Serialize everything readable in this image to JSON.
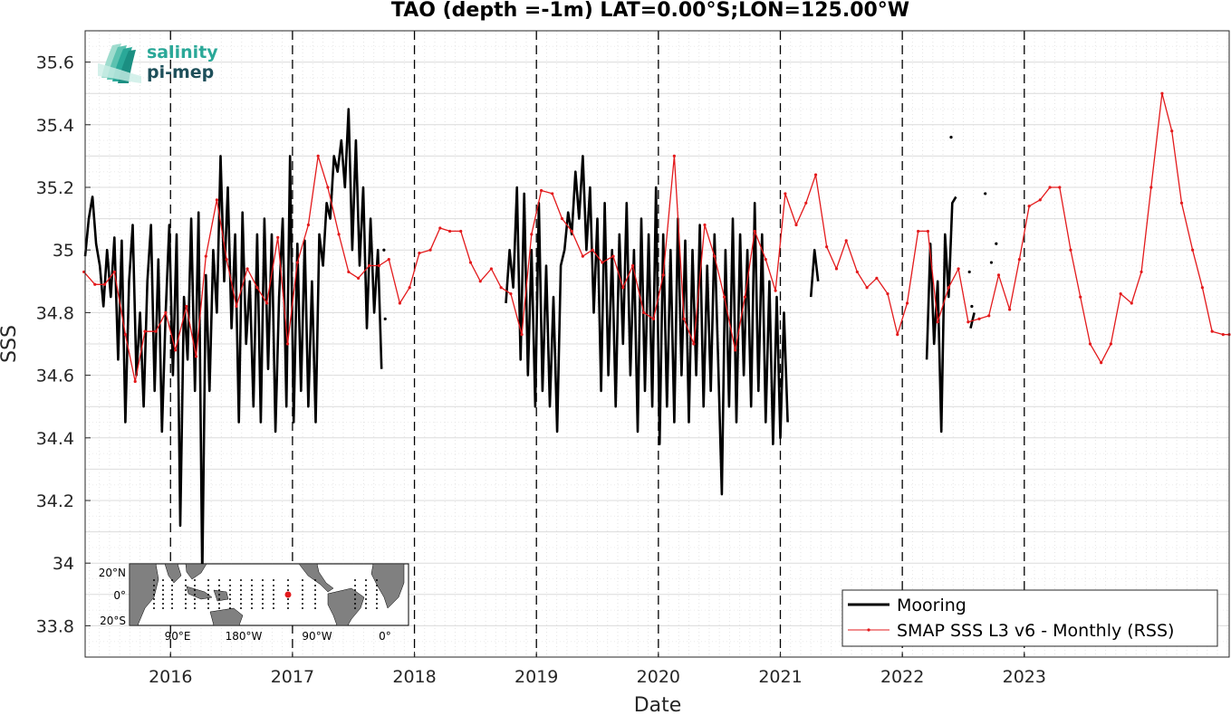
{
  "chart_data": {
    "type": "line",
    "title": "TAO (depth =-1m) LAT=0.00°S;LON=125.00°W",
    "xlabel": "Date",
    "ylabel": "SSS",
    "xlim": [
      2015.3,
      2024.68
    ],
    "ylim": [
      33.7,
      35.7
    ],
    "x_tick_labels": [
      "2016",
      "2017",
      "2018",
      "2019",
      "2020",
      "2021",
      "2022",
      "2023"
    ],
    "x_ticks": [
      2016,
      2017,
      2018,
      2019,
      2020,
      2021,
      2022,
      2023
    ],
    "y_ticks": [
      33.8,
      34,
      34.2,
      34.4,
      34.6,
      34.8,
      35,
      35.2,
      35.4,
      35.6
    ],
    "y_tick_labels": [
      "33.8",
      "34",
      "34.2",
      "34.4",
      "34.6",
      "34.8",
      "35",
      "35.2",
      "35.4",
      "35.6"
    ],
    "vertical_dashed_lines_at": [
      2016,
      2017,
      2018,
      2019,
      2020,
      2021,
      2022,
      2023
    ],
    "grid": true,
    "legend_position": "bottom-right",
    "series": [
      {
        "name": "Mooring",
        "color": "#000000",
        "style": "thick-line",
        "segments": [
          [
            [
              2015.3,
              34.98
            ],
            [
              2015.33,
              35.1
            ],
            [
              2015.36,
              35.17
            ],
            [
              2015.39,
              35.02
            ],
            [
              2015.42,
              34.95
            ],
            [
              2015.45,
              34.82
            ],
            [
              2015.48,
              35.0
            ],
            [
              2015.51,
              34.85
            ],
            [
              2015.54,
              35.04
            ],
            [
              2015.57,
              34.65
            ],
            [
              2015.6,
              35.03
            ],
            [
              2015.63,
              34.45
            ],
            [
              2015.66,
              34.9
            ],
            [
              2015.69,
              35.08
            ],
            [
              2015.72,
              34.6
            ],
            [
              2015.75,
              34.8
            ],
            [
              2015.78,
              34.5
            ],
            [
              2015.81,
              34.9
            ],
            [
              2015.84,
              35.08
            ],
            [
              2015.87,
              34.55
            ],
            [
              2015.9,
              34.97
            ],
            [
              2015.93,
              34.42
            ],
            [
              2015.96,
              34.8
            ],
            [
              2015.99,
              35.08
            ],
            [
              2016.02,
              34.6
            ],
            [
              2016.05,
              35.05
            ],
            [
              2016.08,
              34.12
            ],
            [
              2016.11,
              34.85
            ],
            [
              2016.14,
              34.65
            ],
            [
              2016.17,
              35.1
            ],
            [
              2016.2,
              34.55
            ],
            [
              2016.23,
              35.12
            ],
            [
              2016.26,
              33.95
            ],
            [
              2016.29,
              34.92
            ],
            [
              2016.32,
              34.55
            ],
            [
              2016.35,
              35.0
            ],
            [
              2016.38,
              34.8
            ],
            [
              2016.41,
              35.3
            ],
            [
              2016.44,
              34.9
            ],
            [
              2016.47,
              35.2
            ],
            [
              2016.5,
              34.75
            ],
            [
              2016.53,
              35.05
            ],
            [
              2016.56,
              34.45
            ],
            [
              2016.59,
              35.12
            ],
            [
              2016.62,
              34.7
            ],
            [
              2016.65,
              34.9
            ],
            [
              2016.68,
              34.5
            ],
            [
              2016.71,
              35.05
            ],
            [
              2016.74,
              34.45
            ],
            [
              2016.77,
              35.1
            ],
            [
              2016.8,
              34.62
            ],
            [
              2016.83,
              35.05
            ],
            [
              2016.86,
              34.42
            ],
            [
              2016.89,
              34.85
            ],
            [
              2016.92,
              35.1
            ],
            [
              2016.95,
              34.5
            ],
            [
              2016.98,
              35.3
            ],
            [
              2017.01,
              34.45
            ],
            [
              2017.04,
              35.02
            ],
            [
              2017.07,
              34.55
            ],
            [
              2017.1,
              35.03
            ],
            [
              2017.13,
              34.5
            ],
            [
              2017.16,
              34.9
            ],
            [
              2017.19,
              34.45
            ],
            [
              2017.22,
              35.05
            ],
            [
              2017.25,
              34.95
            ],
            [
              2017.28,
              35.15
            ],
            [
              2017.31,
              35.1
            ],
            [
              2017.34,
              35.3
            ],
            [
              2017.37,
              35.25
            ],
            [
              2017.4,
              35.35
            ],
            [
              2017.43,
              35.2
            ],
            [
              2017.46,
              35.45
            ],
            [
              2017.49,
              35.0
            ],
            [
              2017.52,
              35.35
            ],
            [
              2017.55,
              34.95
            ],
            [
              2017.58,
              35.2
            ],
            [
              2017.61,
              34.75
            ],
            [
              2017.64,
              35.1
            ],
            [
              2017.67,
              34.8
            ],
            [
              2017.7,
              35.0
            ],
            [
              2017.73,
              34.62
            ]
          ],
          [
            [
              2018.75,
              34.83
            ],
            [
              2018.78,
              35.0
            ],
            [
              2018.81,
              34.88
            ],
            [
              2018.84,
              35.2
            ],
            [
              2018.87,
              34.65
            ],
            [
              2018.9,
              35.18
            ],
            [
              2018.93,
              34.6
            ],
            [
              2018.96,
              35.0
            ],
            [
              2018.99,
              34.5
            ],
            [
              2019.02,
              35.15
            ],
            [
              2019.05,
              34.55
            ],
            [
              2019.08,
              34.95
            ],
            [
              2019.11,
              34.5
            ],
            [
              2019.14,
              34.85
            ],
            [
              2019.17,
              34.42
            ],
            [
              2019.2,
              34.95
            ],
            [
              2019.23,
              35.0
            ],
            [
              2019.26,
              35.12
            ],
            [
              2019.29,
              35.05
            ],
            [
              2019.32,
              35.25
            ],
            [
              2019.35,
              35.1
            ],
            [
              2019.38,
              35.3
            ],
            [
              2019.41,
              35.0
            ],
            [
              2019.44,
              35.2
            ],
            [
              2019.47,
              34.8
            ],
            [
              2019.5,
              35.1
            ],
            [
              2019.53,
              34.55
            ],
            [
              2019.56,
              35.15
            ],
            [
              2019.59,
              34.6
            ],
            [
              2019.62,
              35.0
            ],
            [
              2019.65,
              34.5
            ],
            [
              2019.68,
              35.05
            ],
            [
              2019.71,
              34.7
            ],
            [
              2019.74,
              35.15
            ],
            [
              2019.77,
              34.6
            ],
            [
              2019.8,
              35.0
            ],
            [
              2019.83,
              34.42
            ],
            [
              2019.86,
              35.1
            ],
            [
              2019.89,
              34.55
            ],
            [
              2019.92,
              35.05
            ],
            [
              2019.95,
              34.5
            ],
            [
              2019.98,
              35.2
            ],
            [
              2020.01,
              34.38
            ],
            [
              2020.04,
              35.05
            ],
            [
              2020.07,
              34.5
            ],
            [
              2020.1,
              35.0
            ],
            [
              2020.13,
              34.45
            ],
            [
              2020.16,
              35.1
            ],
            [
              2020.19,
              34.6
            ],
            [
              2020.22,
              35.03
            ],
            [
              2020.25,
              34.45
            ],
            [
              2020.28,
              35.0
            ],
            [
              2020.31,
              34.6
            ],
            [
              2020.34,
              35.08
            ],
            [
              2020.37,
              34.5
            ],
            [
              2020.4,
              34.95
            ],
            [
              2020.43,
              34.55
            ],
            [
              2020.46,
              35.05
            ],
            [
              2020.49,
              34.65
            ],
            [
              2020.52,
              34.22
            ],
            [
              2020.55,
              35.0
            ],
            [
              2020.58,
              34.5
            ],
            [
              2020.61,
              35.1
            ],
            [
              2020.64,
              34.45
            ],
            [
              2020.67,
              35.05
            ],
            [
              2020.7,
              34.6
            ],
            [
              2020.73,
              35.0
            ],
            [
              2020.76,
              34.5
            ],
            [
              2020.79,
              35.15
            ],
            [
              2020.82,
              34.55
            ],
            [
              2020.85,
              35.05
            ],
            [
              2020.88,
              34.45
            ],
            [
              2020.91,
              34.9
            ],
            [
              2020.94,
              34.38
            ],
            [
              2020.97,
              34.85
            ],
            [
              2021.0,
              34.4
            ],
            [
              2021.03,
              34.8
            ],
            [
              2021.06,
              34.45
            ]
          ],
          [
            [
              2021.25,
              34.85
            ],
            [
              2021.28,
              35.0
            ],
            [
              2021.31,
              34.9
            ]
          ],
          [
            [
              2022.2,
              34.65
            ],
            [
              2022.23,
              35.02
            ],
            [
              2022.26,
              34.7
            ],
            [
              2022.29,
              34.9
            ],
            [
              2022.32,
              34.42
            ],
            [
              2022.35,
              35.05
            ],
            [
              2022.38,
              34.85
            ],
            [
              2022.41,
              35.15
            ],
            [
              2022.44,
              35.17
            ]
          ],
          [
            [
              2022.56,
              34.75
            ],
            [
              2022.59,
              34.8
            ]
          ]
        ],
        "isolated_points": [
          [
            2017.75,
            35.0
          ],
          [
            2017.76,
            34.78
          ],
          [
            2022.4,
            35.36
          ],
          [
            2022.55,
            34.93
          ],
          [
            2022.57,
            34.82
          ],
          [
            2022.68,
            35.18
          ],
          [
            2022.73,
            34.96
          ],
          [
            2022.77,
            35.02
          ]
        ]
      },
      {
        "name": "SMAP SSS L3 v6 - Monthly (RSS)",
        "color": "#e31a1c",
        "style": "thin-line-dots",
        "x": [
          2015.29,
          2015.38,
          2015.46,
          2015.54,
          2015.63,
          2015.71,
          2015.79,
          2015.88,
          2015.96,
          2016.04,
          2016.13,
          2016.21,
          2016.29,
          2016.38,
          2016.46,
          2016.54,
          2016.63,
          2016.71,
          2016.79,
          2016.88,
          2016.96,
          2017.04,
          2017.13,
          2017.21,
          2017.29,
          2017.38,
          2017.46,
          2017.54,
          2017.63,
          2017.71,
          2017.79,
          2017.88,
          2017.96,
          2018.04,
          2018.13,
          2018.21,
          2018.29,
          2018.38,
          2018.46,
          2018.54,
          2018.63,
          2018.71,
          2018.79,
          2018.88,
          2018.96,
          2019.04,
          2019.13,
          2019.21,
          2019.29,
          2019.38,
          2019.46,
          2019.54,
          2019.63,
          2019.71,
          2019.79,
          2019.88,
          2019.96,
          2020.04,
          2020.13,
          2020.21,
          2020.29,
          2020.38,
          2020.46,
          2020.54,
          2020.63,
          2020.71,
          2020.79,
          2020.88,
          2020.96,
          2021.04,
          2021.13,
          2021.21,
          2021.29,
          2021.38,
          2021.46,
          2021.54,
          2021.63,
          2021.71,
          2021.79,
          2021.88,
          2021.96,
          2022.04,
          2022.13,
          2022.21,
          2022.29,
          2022.38,
          2022.46,
          2022.54,
          2022.63,
          2022.71,
          2022.79,
          2022.88,
          2022.96,
          2023.04,
          2023.13,
          2023.21,
          2023.29,
          2023.38,
          2023.46,
          2023.54,
          2023.63,
          2023.71,
          2023.79,
          2023.88,
          2023.96,
          2024.04,
          2024.13,
          2024.21,
          2024.29,
          2024.38,
          2024.46,
          2024.54,
          2024.63,
          2024.68
        ],
        "y": [
          34.93,
          34.89,
          34.89,
          34.93,
          34.73,
          34.58,
          34.74,
          34.74,
          34.8,
          34.68,
          34.82,
          34.66,
          34.98,
          35.16,
          34.97,
          34.82,
          34.94,
          34.88,
          34.83,
          35.04,
          34.7,
          34.96,
          35.08,
          35.3,
          35.2,
          35.05,
          34.93,
          34.91,
          34.95,
          34.95,
          34.97,
          34.83,
          34.88,
          34.99,
          35.0,
          35.07,
          35.06,
          35.06,
          34.96,
          34.9,
          34.94,
          34.88,
          34.86,
          34.73,
          35.05,
          35.19,
          35.18,
          35.1,
          35.06,
          34.98,
          35.0,
          34.96,
          34.98,
          34.88,
          34.95,
          34.8,
          34.78,
          34.92,
          35.3,
          34.78,
          34.7,
          35.08,
          34.98,
          34.85,
          34.68,
          34.85,
          35.06,
          34.97,
          34.87,
          35.18,
          35.08,
          35.15,
          35.24,
          35.01,
          34.94,
          35.03,
          34.93,
          34.88,
          34.91,
          34.86,
          34.73,
          34.83,
          35.06,
          35.06,
          34.77,
          34.88,
          34.94,
          34.77,
          34.78,
          34.79,
          34.92,
          34.81,
          34.97,
          35.14,
          35.16,
          35.2,
          35.2,
          35.0,
          34.85,
          34.7,
          34.64,
          34.7,
          34.86,
          34.83,
          34.93,
          35.2,
          35.5,
          35.38,
          35.15,
          35.0,
          34.88,
          34.74,
          34.73,
          34.73
        ]
      }
    ]
  },
  "logo": {
    "line1": "salinity",
    "line2": "pi-mep"
  },
  "inset_map": {
    "lat_labels": [
      "20°N",
      "0°",
      "20°S"
    ],
    "lon_labels": [
      "90°E",
      "180°W",
      "90°W",
      "0°"
    ],
    "land_color": "#808080",
    "ocean_color": "#ffffff",
    "marker_color": "#e31a1c"
  }
}
